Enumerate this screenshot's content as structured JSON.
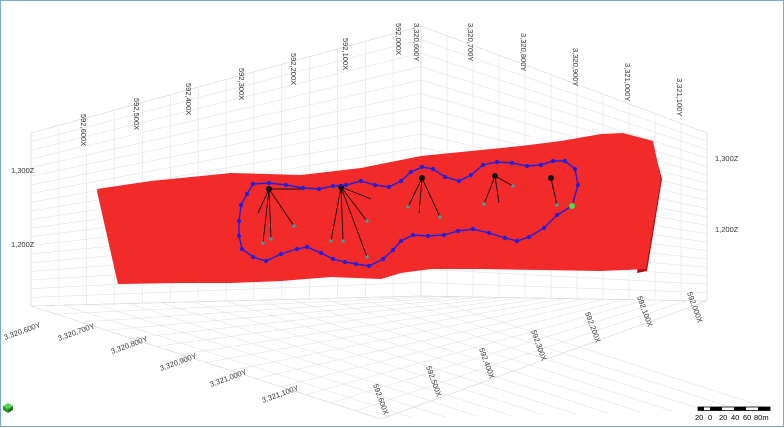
{
  "viewport": {
    "x_labels_back": [
      "592,600X",
      "592,500X",
      "592,400X",
      "592,300X",
      "592,200X",
      "592,100X",
      "592,000X"
    ],
    "y_labels_back": [
      "3,320,600Y",
      "3,320,700Y",
      "3,320,800Y",
      "3,320,900Y",
      "3,321,000Y",
      "3,321,100Y"
    ],
    "y_labels_front": [
      "3,320,600Y",
      "3,320,700Y",
      "3,320,800Y",
      "3,320,900Y",
      "3,321,000Y",
      "3,321,100Y"
    ],
    "x_labels_front": [
      "592,600X",
      "592,500X",
      "592,400X",
      "592,300X",
      "592,200X",
      "592,100X",
      "592,000X"
    ],
    "z_labels_left": [
      "1,300Z",
      "1,200Z"
    ],
    "z_labels_right": [
      "1,300Z",
      "1,200Z"
    ]
  },
  "scale_bar": {
    "labels": [
      "20",
      "0",
      "20",
      "40",
      "60",
      "80m"
    ]
  },
  "colors": {
    "solid": "#f22a2a",
    "solid_dark": "#a80f0f",
    "boundary": "#1f1fe0",
    "drill": "#111111",
    "grid": "#d4d4d4"
  },
  "icons": {
    "corner_tool": "green-cube-icon"
  }
}
